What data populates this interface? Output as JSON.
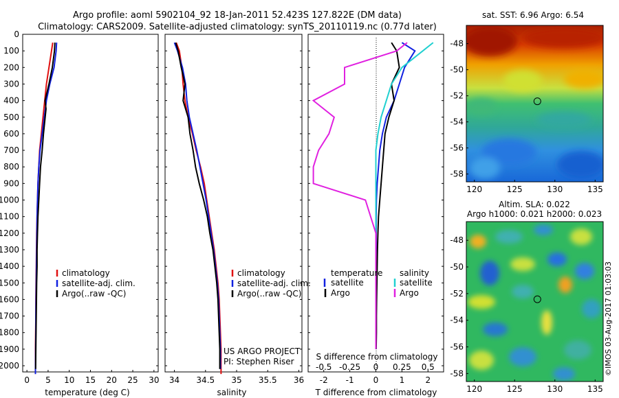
{
  "title_line1": "Argo profile: aoml 5902104_92 18-Jan-2011 52.423S 127.822E (DM data)",
  "title_line2": "Climatology: CARS2009. Satellite-adjusted climatology: synTS_20110119.nc (0.77d later)",
  "watermark": "©IMOS 03-Aug-2017 01:03:03",
  "colors": {
    "clim": "#e01010",
    "sat": "#1020e0",
    "argo": "#000000",
    "sal_sat": "#20d0d0",
    "sal_argo": "#e020e0"
  },
  "depth_ticks": [
    "0",
    "100",
    "200",
    "300",
    "400",
    "500",
    "600",
    "700",
    "800",
    "900",
    "1000",
    "1100",
    "1200",
    "1300",
    "1400",
    "1500",
    "1600",
    "1700",
    "1800",
    "1900",
    "2000"
  ],
  "panel1": {
    "xlabel": "temperature (deg C)",
    "xticks": [
      "0",
      "5",
      "10",
      "15",
      "20",
      "25",
      "30"
    ],
    "legend": [
      "climatology",
      "satellite-adj. clim.",
      "Argo(..raw -QC)"
    ]
  },
  "panel2": {
    "xlabel": "salinity",
    "xticks": [
      "34",
      "34.5",
      "35",
      "35.5",
      "36"
    ],
    "legend": [
      "climatology",
      "satellite-adj. clim.",
      "Argo(..raw -QC)"
    ],
    "credit1": "US ARGO PROJECT",
    "credit2": "PI: Stephen Riser"
  },
  "panel3": {
    "xlabel": "T difference from climatology",
    "xlabel_top": "S difference from climatology",
    "xticks": [
      "-2",
      "-1",
      "0",
      "1",
      "2"
    ],
    "xticks_top": [
      "-0.5",
      "-0.25",
      "0",
      "0.25",
      "0.5"
    ],
    "legend_t_title": "temperature",
    "legend_s_title": "salinity",
    "legend_t": [
      "satellite",
      "Argo"
    ],
    "legend_s": [
      "satellite",
      "Argo"
    ]
  },
  "map_sst": {
    "title": "sat. SST: 6.96 Argo: 6.54",
    "yticks": [
      "-48",
      "-50",
      "-52",
      "-54",
      "-56",
      "-58"
    ],
    "xticks": [
      "120",
      "125",
      "130",
      "135"
    ]
  },
  "map_sla": {
    "title1": "Altim. SLA: 0.022",
    "title2": "Argo h1000: 0.021 h2000: 0.023",
    "yticks": [
      "-48",
      "-50",
      "-52",
      "-54",
      "-56",
      "-58"
    ],
    "xticks": [
      "120",
      "125",
      "130",
      "135"
    ]
  },
  "chart_data": [
    {
      "type": "line",
      "name": "temperature profile",
      "xlabel": "temperature (deg C)",
      "ylabel": "depth",
      "xlim": [
        -1,
        31
      ],
      "ylim": [
        2050,
        0
      ],
      "series": [
        {
          "name": "climatology",
          "color": "#e01010",
          "x": [
            6.1,
            5.8,
            5.2,
            4.6,
            4.2,
            3.8,
            3.4,
            3.0,
            2.8,
            2.6,
            2.5,
            2.4,
            2.3,
            2.25,
            2.2,
            2.15,
            2.1,
            2.1,
            2.05,
            2.0,
            2.0
          ],
          "y": [
            50,
            100,
            200,
            300,
            400,
            500,
            600,
            700,
            800,
            900,
            1000,
            1100,
            1200,
            1300,
            1400,
            1500,
            1600,
            1700,
            1800,
            1900,
            2050
          ]
        },
        {
          "name": "satellite-adj. clim.",
          "color": "#1020e0",
          "x": [
            7.0,
            6.9,
            6.4,
            5.4,
            4.6,
            4.1,
            3.6,
            3.1,
            2.8,
            2.6,
            2.5,
            2.4,
            2.35,
            2.3,
            2.25,
            2.2,
            2.15,
            2.1,
            2.1,
            2.05,
            2.0
          ],
          "y": [
            50,
            100,
            200,
            300,
            400,
            500,
            600,
            700,
            800,
            900,
            1000,
            1100,
            1200,
            1300,
            1400,
            1500,
            1600,
            1700,
            1800,
            1900,
            2050
          ]
        },
        {
          "name": "Argo(..raw -QC)",
          "color": "#000000",
          "x": [
            6.6,
            6.5,
            6.0,
            5.2,
            4.3,
            4.5,
            3.9,
            3.6,
            3.2,
            3.0,
            2.8,
            2.6,
            2.5,
            2.4,
            2.4,
            2.3,
            2.25,
            2.2,
            2.15,
            2.1,
            2.05
          ],
          "y": [
            50,
            100,
            200,
            300,
            400,
            450,
            600,
            700,
            800,
            900,
            1000,
            1100,
            1200,
            1300,
            1400,
            1500,
            1600,
            1700,
            1800,
            1900,
            2020
          ]
        }
      ]
    },
    {
      "type": "line",
      "name": "salinity profile",
      "xlabel": "salinity",
      "ylabel": "depth",
      "xlim": [
        33.85,
        36.05
      ],
      "ylim": [
        2050,
        0
      ],
      "series": [
        {
          "name": "climatology",
          "color": "#e01010",
          "x": [
            34.03,
            34.08,
            34.12,
            34.14,
            34.17,
            34.22,
            34.29,
            34.35,
            34.42,
            34.48,
            34.52,
            34.56,
            34.6,
            34.64,
            34.67,
            34.7,
            34.72,
            34.73,
            34.74,
            34.75,
            34.75
          ],
          "y": [
            50,
            100,
            200,
            300,
            400,
            500,
            600,
            700,
            800,
            900,
            1000,
            1100,
            1200,
            1300,
            1400,
            1500,
            1600,
            1700,
            1800,
            1900,
            2050
          ]
        },
        {
          "name": "satellite-adj. clim.",
          "color": "#1020e0",
          "x": [
            34.0,
            34.05,
            34.13,
            34.18,
            34.2,
            34.24,
            34.3,
            34.36,
            34.41,
            34.46,
            34.51,
            34.55,
            34.59,
            34.63,
            34.66,
            34.69,
            34.71,
            34.72,
            34.73,
            34.74,
            34.74
          ],
          "y": [
            50,
            100,
            200,
            300,
            400,
            500,
            600,
            700,
            800,
            900,
            1000,
            1100,
            1200,
            1300,
            1400,
            1500,
            1600,
            1700,
            1800,
            1900,
            2020
          ]
        },
        {
          "name": "Argo(..raw -QC)",
          "color": "#000000",
          "x": [
            34.02,
            34.06,
            34.11,
            34.17,
            34.14,
            34.22,
            34.25,
            34.3,
            34.34,
            34.4,
            34.47,
            34.53,
            34.57,
            34.62,
            34.65,
            34.68,
            34.7,
            34.71,
            34.72,
            34.73,
            34.73
          ],
          "y": [
            50,
            100,
            200,
            300,
            400,
            500,
            600,
            700,
            800,
            900,
            1000,
            1100,
            1200,
            1300,
            1400,
            1500,
            1600,
            1700,
            1800,
            1900,
            2020
          ]
        }
      ]
    },
    {
      "type": "line",
      "name": "difference from climatology",
      "xlabel": "T difference from climatology",
      "xlabel_top": "S difference from climatology",
      "xlim": [
        -2.6,
        2.6
      ],
      "ylim": [
        2050,
        0
      ],
      "series": [
        {
          "name": "temperature satellite",
          "color": "#1020e0",
          "x": [
            1.0,
            1.5,
            1.1,
            0.9,
            0.7,
            0.4,
            0.25,
            0.15,
            0.1,
            0.05,
            0.02,
            0.01,
            0.01,
            0.01,
            0.0,
            0.0,
            0.0,
            0.0,
            0.0,
            0.0
          ],
          "y": [
            50,
            100,
            200,
            300,
            400,
            500,
            600,
            700,
            800,
            900,
            1000,
            1100,
            1200,
            1300,
            1400,
            1500,
            1600,
            1700,
            1800,
            1900
          ]
        },
        {
          "name": "temperature Argo",
          "color": "#000000",
          "x": [
            0.6,
            0.8,
            0.9,
            0.6,
            0.7,
            0.5,
            0.35,
            0.3,
            0.25,
            0.2,
            0.15,
            0.1,
            0.08,
            0.06,
            0.05,
            0.04,
            0.03,
            0.02,
            0.02,
            0.01
          ],
          "y": [
            50,
            100,
            200,
            300,
            400,
            500,
            600,
            700,
            800,
            900,
            1000,
            1100,
            1200,
            1300,
            1400,
            1500,
            1600,
            1700,
            1800,
            1900
          ]
        },
        {
          "name": "salinity satellite",
          "color": "#20d0d0",
          "x": [
            0.55,
            0.45,
            0.25,
            0.15,
            0.1,
            0.05,
            0.02,
            0.0,
            0.0,
            0.0,
            0.0,
            0.0,
            0.0,
            0.0,
            0.0,
            0.0,
            0.0,
            0.0,
            0.0,
            0.0
          ],
          "y": [
            50,
            100,
            200,
            300,
            400,
            500,
            600,
            700,
            800,
            900,
            1000,
            1100,
            1200,
            1300,
            1400,
            1500,
            1600,
            1700,
            1800,
            1900
          ]
        },
        {
          "name": "salinity Argo",
          "color": "#e020e0",
          "x": [
            0.3,
            0.2,
            -0.3,
            -0.3,
            -0.6,
            -0.4,
            -0.45,
            -0.55,
            -0.6,
            -0.6,
            -0.1,
            -0.05,
            0.0,
            0.0,
            0.0,
            0.0,
            0.0,
            0.0,
            0.0,
            0.0
          ],
          "y": [
            50,
            100,
            200,
            300,
            400,
            500,
            600,
            700,
            800,
            900,
            1000,
            1100,
            1200,
            1300,
            1400,
            1500,
            1600,
            1700,
            1800,
            1900
          ]
        }
      ]
    },
    {
      "type": "heatmap",
      "name": "satellite SST map",
      "title": "sat. SST: 6.96 Argo: 6.54",
      "xlim": [
        119,
        136
      ],
      "ylim": [
        -58.6,
        -46.6
      ],
      "xticks": [
        120,
        125,
        130,
        135
      ],
      "yticks": [
        -48,
        -50,
        -52,
        -54,
        -56,
        -58
      ],
      "argo_location": {
        "lon": 127.822,
        "lat": -52.423
      }
    },
    {
      "type": "heatmap",
      "name": "altimetry SLA map",
      "title": "Altim. SLA: 0.022",
      "subtitle": "Argo h1000: 0.021 h2000: 0.023",
      "xlim": [
        119,
        136
      ],
      "ylim": [
        -58.6,
        -46.6
      ],
      "xticks": [
        120,
        125,
        130,
        135
      ],
      "yticks": [
        -48,
        -50,
        -52,
        -54,
        -56,
        -58
      ],
      "argo_location": {
        "lon": 127.822,
        "lat": -52.423
      }
    }
  ]
}
